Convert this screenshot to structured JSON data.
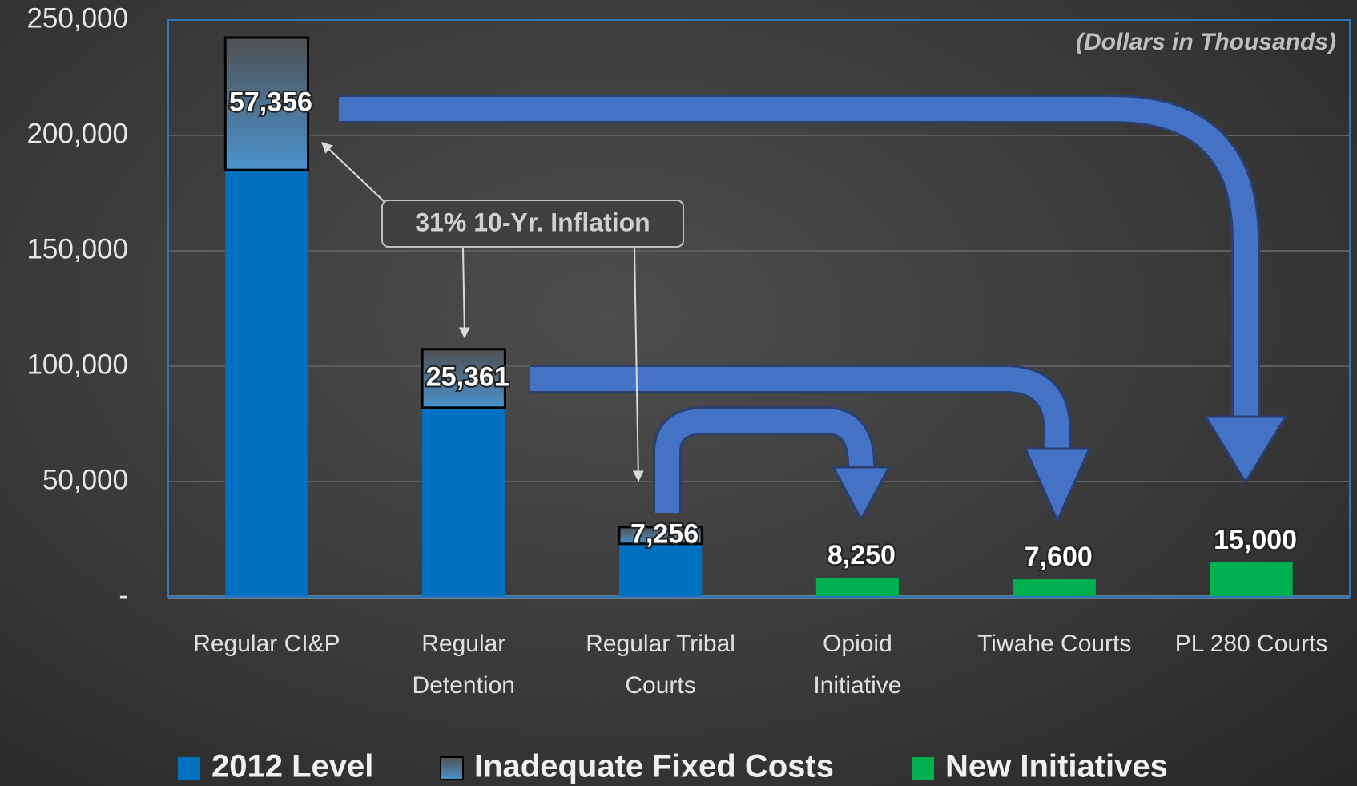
{
  "chart_data": {
    "type": "stacked_bar",
    "annotations": [
      "(Dollars in Thousands)",
      "31% 10-Yr. Inflation"
    ],
    "categories": [
      "Regular CI&P",
      "Regular Detention",
      "Regular Tribal Courts",
      "Opioid Initiative",
      "Tiwahe Courts",
      "PL 280 Courts"
    ],
    "series": [
      {
        "name": "2012 Level",
        "color": "#0070c0",
        "values": [
          185000,
          82000,
          23000,
          null,
          null,
          null
        ]
      },
      {
        "name": "Inadequate Fixed Costs",
        "color": "#4a93cf",
        "values": [
          57356,
          25361,
          7256,
          null,
          null,
          null
        ],
        "value_labels": [
          "57,356",
          "25,361",
          "7,256",
          null,
          null,
          null
        ]
      },
      {
        "name": "New Initiatives",
        "color": "#00b050",
        "values": [
          null,
          null,
          null,
          8250,
          7600,
          15000
        ],
        "value_labels": [
          null,
          null,
          null,
          "8,250",
          "7,600",
          "15,000"
        ]
      }
    ],
    "ylim": [
      0,
      250000
    ],
    "yticks": [
      {
        "value": 0,
        "label": "-"
      },
      {
        "value": 50000,
        "label": "50,000"
      },
      {
        "value": 100000,
        "label": "100,000"
      },
      {
        "value": 150000,
        "label": "150,000"
      },
      {
        "value": 200000,
        "label": "200,000"
      },
      {
        "value": 250000,
        "label": "250,000"
      }
    ],
    "grid": true,
    "legend": "bottom"
  }
}
